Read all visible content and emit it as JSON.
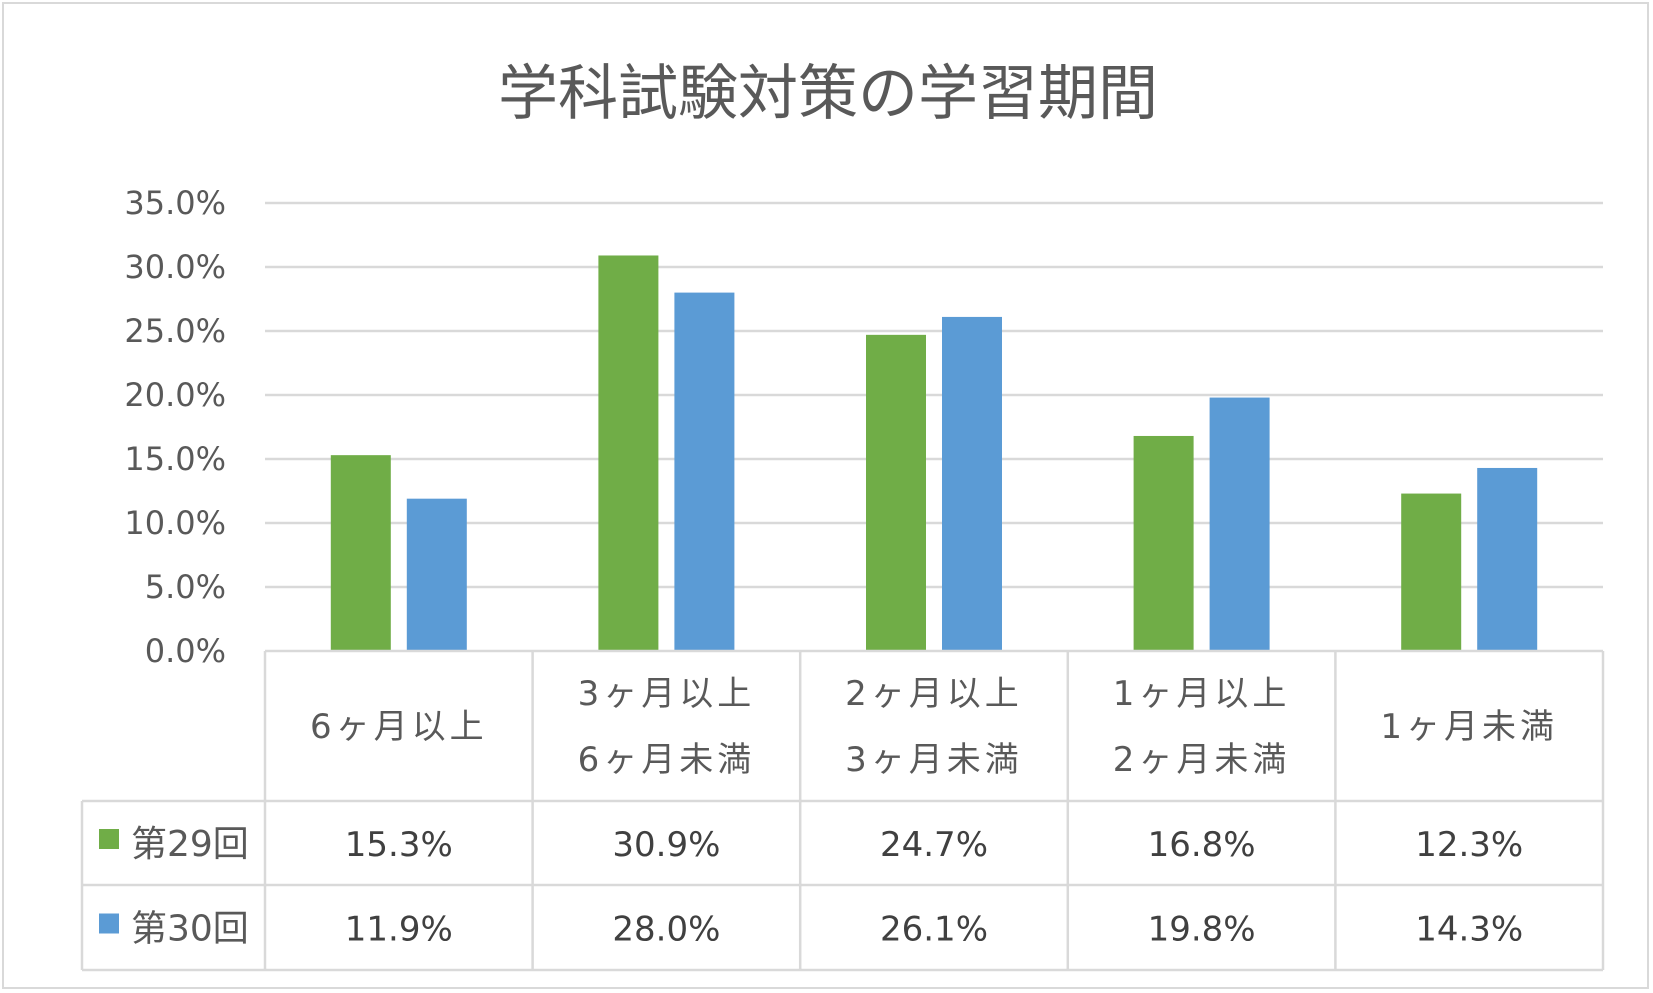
{
  "chart_data": {
    "type": "bar",
    "title": "学科試験対策の学習期間",
    "categories": [
      [
        "6ヶ月以上"
      ],
      [
        "3ヶ月以上",
        "6ヶ月未満"
      ],
      [
        "2ヶ月以上",
        "3ヶ月未満"
      ],
      [
        "1ヶ月以上",
        "2ヶ月未満"
      ],
      [
        "1ヶ月未満"
      ]
    ],
    "series": [
      {
        "name": "第29回",
        "color": "#70ad47",
        "values": [
          15.3,
          30.9,
          24.7,
          16.8,
          12.3
        ],
        "labels": [
          "15.3%",
          "30.9%",
          "24.7%",
          "16.8%",
          "12.3%"
        ]
      },
      {
        "name": "第30回",
        "color": "#5b9bd5",
        "values": [
          11.9,
          28.0,
          26.1,
          19.8,
          14.3
        ],
        "labels": [
          "11.9%",
          "28.0%",
          "26.1%",
          "19.8%",
          "14.3%"
        ]
      }
    ],
    "ylim": [
      0,
      35
    ],
    "yticks": [
      "0.0%",
      "5.0%",
      "10.0%",
      "15.0%",
      "20.0%",
      "25.0%",
      "30.0%",
      "35.0%"
    ],
    "grid": true,
    "data_table": true,
    "legend": "in-data-table"
  }
}
